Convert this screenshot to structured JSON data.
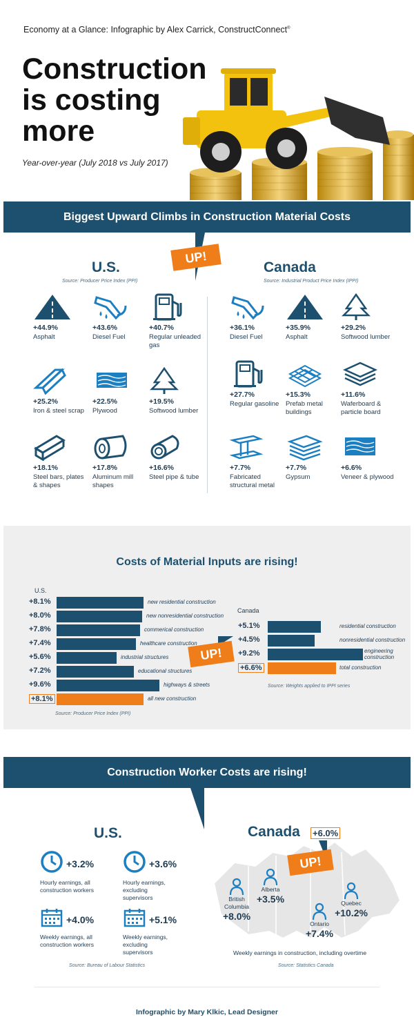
{
  "header": {
    "top_line": "Economy at a Glance: Infographic by Alex Carrick, ConstructConnect",
    "registered": "®",
    "title_line1": "Construction",
    "title_line2": "is costing",
    "title_line3": "more",
    "subtitle": "Year-over-year (July 2018 vs July 2017)"
  },
  "materials": {
    "banner": "Biggest Upward Climbs in Construction Material Costs",
    "up_tag": "UP!",
    "us": {
      "heading": "U.S.",
      "source": "Source: Producer Price Index (PPI)",
      "items": [
        {
          "pct": "+44.9%",
          "label": "Asphalt",
          "icon": "asphalt-icon"
        },
        {
          "pct": "+43.6%",
          "label": "Diesel Fuel",
          "icon": "fuel-nozzle-icon"
        },
        {
          "pct": "+40.7%",
          "label": "Regular unleaded gas",
          "icon": "gas-pump-icon"
        },
        {
          "pct": "+25.2%",
          "label": "Iron & steel scrap",
          "icon": "steel-beam-icon"
        },
        {
          "pct": "+22.5%",
          "label": "Plywood",
          "icon": "plywood-icon"
        },
        {
          "pct": "+19.5%",
          "label": "Softwood lumber",
          "icon": "tree-icon"
        },
        {
          "pct": "+18.1%",
          "label": "Steel bars, plates & shapes",
          "icon": "steel-bar-icon"
        },
        {
          "pct": "+17.8%",
          "label": "Aluminum mill shapes",
          "icon": "aluminum-roll-icon"
        },
        {
          "pct": "+16.6%",
          "label": "Steel pipe & tube",
          "icon": "pipe-icon"
        }
      ]
    },
    "canada": {
      "heading": "Canada",
      "source": "Source: Industrial Product Price Index (IPPI)",
      "items": [
        {
          "pct": "+36.1%",
          "label": "Diesel Fuel",
          "icon": "fuel-nozzle-icon"
        },
        {
          "pct": "+35.9%",
          "label": "Asphalt",
          "icon": "asphalt-icon"
        },
        {
          "pct": "+29.2%",
          "label": "Softwood lumber",
          "icon": "tree-icon"
        },
        {
          "pct": "+27.7%",
          "label": "Regular gasoline",
          "icon": "gas-pump-icon"
        },
        {
          "pct": "+15.3%",
          "label": "Prefab metal buildings",
          "icon": "metal-panels-icon"
        },
        {
          "pct": "+11.6%",
          "label": "Waferboard & particle board",
          "icon": "board-stack-icon"
        },
        {
          "pct": "+7.7%",
          "label": "Fabricated structural metal",
          "icon": "i-beam-icon"
        },
        {
          "pct": "+7.7%",
          "label": "Gypsum",
          "icon": "gypsum-icon"
        },
        {
          "pct": "+6.6%",
          "label": "Veneer & plywood",
          "icon": "veneer-icon"
        }
      ]
    }
  },
  "inputs": {
    "heading": "Costs of Material Inputs are rising!",
    "up_tag": "UP!",
    "chart_data": [
      {
        "type": "bar",
        "title": "U.S.",
        "categories": [
          "new residential construction",
          "new nonresidential construction",
          "commerical construction",
          "healthcare construction",
          "industrial structures",
          "educational structures",
          "highways & streets",
          "all new construction"
        ],
        "values": [
          8.1,
          8.0,
          7.8,
          7.4,
          5.6,
          7.2,
          9.6,
          8.1
        ],
        "labels": [
          "+8.1%",
          "+8.0%",
          "+7.8%",
          "+7.4%",
          "+5.6%",
          "+7.2%",
          "+9.6%",
          "+8.1%"
        ],
        "highlight_index": 7,
        "source": "Source: Producer Price Index (PPI)",
        "ylim": [
          0,
          10
        ]
      },
      {
        "type": "bar",
        "title": "Canada",
        "categories": [
          "residential construction",
          "nonresidential construction",
          "engineering construction",
          "total construction"
        ],
        "values": [
          5.1,
          4.5,
          9.2,
          6.6
        ],
        "labels": [
          "+5.1%",
          "+4.5%",
          "+9.2%",
          "+6.6%"
        ],
        "highlight_index": 3,
        "source": "Source: Weights applied to IPPI series",
        "ylim": [
          0,
          10
        ]
      }
    ]
  },
  "workers": {
    "banner": "Construction Worker Costs are rising!",
    "us": {
      "heading": "U.S.",
      "items": [
        {
          "pct": "+3.2%",
          "label": "Hourly earnings, all construction workers"
        },
        {
          "pct": "+3.6%",
          "label": "Hourly earnings, excluding supervisors"
        },
        {
          "pct": "+4.0%",
          "label": "Weekly earnings, all construction workers"
        },
        {
          "pct": "+5.1%",
          "label": "Weekly earnings, excluding supervisors"
        }
      ],
      "source": "Source: Bureau of Labour Statistics"
    },
    "canada": {
      "heading": "Canada",
      "total": "+6.0%",
      "up_tag": "UP!",
      "provinces": [
        {
          "name": "British Columbia",
          "pct": "+8.0%"
        },
        {
          "name": "Alberta",
          "pct": "+3.5%"
        },
        {
          "name": "Ontario",
          "pct": "+7.4%"
        },
        {
          "name": "Quebec",
          "pct": "+10.2%"
        }
      ],
      "note": "Weekly earnings in construction, including overtime",
      "source": "Source: Statistics Canada"
    }
  },
  "footer": {
    "credit": "Infographic by Mary Klkic, Lead Designer"
  },
  "colors": {
    "navy": "#1d506e",
    "orange": "#ee7d1a",
    "light_gray": "#efefef",
    "blue": "#1c7fc1"
  }
}
